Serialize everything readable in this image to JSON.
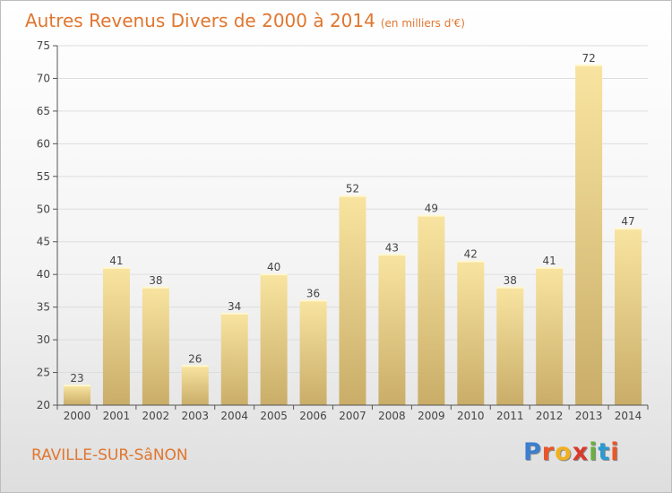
{
  "header": {
    "title": "Autres Revenus Divers de 2000 à 2014",
    "unit": "(en milliers d'€)"
  },
  "footer": {
    "commune": "RAVILLE-SUR-SâNON",
    "logo": "Proxiti",
    "logo_colors": [
      "#3a7fd0",
      "#e8562a",
      "#f0b020",
      "#d93a2a",
      "#6ab040",
      "#2a9ad0",
      "#e8562a"
    ]
  },
  "colors": {
    "title": "#e0762f",
    "bar_light": "#f8e4a0",
    "bar_dark": "#c9ad68",
    "axis": "#555555",
    "grid": "#dddddd"
  },
  "chart_data": {
    "type": "bar",
    "title": "Autres Revenus Divers de 2000 à 2014",
    "subtitle": "(en milliers d'€)",
    "xlabel": "",
    "ylabel": "",
    "categories": [
      "2000",
      "2001",
      "2002",
      "2003",
      "2004",
      "2005",
      "2006",
      "2007",
      "2008",
      "2009",
      "2010",
      "2011",
      "2012",
      "2013",
      "2014"
    ],
    "values": [
      23,
      41,
      38,
      26,
      34,
      40,
      36,
      52,
      43,
      49,
      42,
      38,
      41,
      72,
      47
    ],
    "yticks": [
      20,
      25,
      30,
      35,
      40,
      45,
      50,
      55,
      60,
      65,
      70,
      75
    ],
    "ylim": [
      20,
      75
    ],
    "grid": true,
    "data_labels": true
  }
}
